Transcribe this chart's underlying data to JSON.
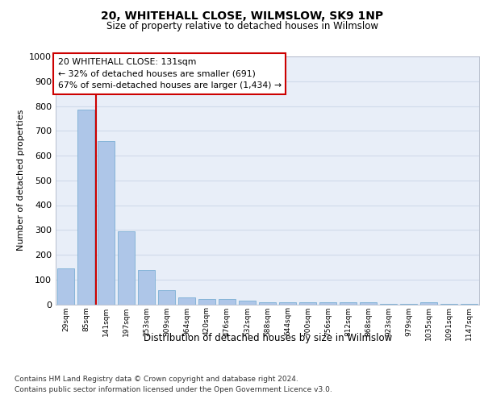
{
  "title": "20, WHITEHALL CLOSE, WILMSLOW, SK9 1NP",
  "subtitle": "Size of property relative to detached houses in Wilmslow",
  "xlabel": "Distribution of detached houses by size in Wilmslow",
  "ylabel": "Number of detached properties",
  "bar_color": "#aec6e8",
  "bar_edge_color": "#7aafd4",
  "categories": [
    "29sqm",
    "85sqm",
    "141sqm",
    "197sqm",
    "253sqm",
    "309sqm",
    "364sqm",
    "420sqm",
    "476sqm",
    "532sqm",
    "588sqm",
    "644sqm",
    "700sqm",
    "756sqm",
    "812sqm",
    "868sqm",
    "923sqm",
    "979sqm",
    "1035sqm",
    "1091sqm",
    "1147sqm"
  ],
  "values": [
    145,
    785,
    660,
    295,
    138,
    57,
    28,
    20,
    20,
    15,
    8,
    8,
    8,
    8,
    8,
    8,
    2,
    2,
    8,
    2,
    2
  ],
  "vline_x": 1.5,
  "annotation_title": "20 WHITEHALL CLOSE: 131sqm",
  "annotation_line1": "← 32% of detached houses are smaller (691)",
  "annotation_line2": "67% of semi-detached houses are larger (1,434) →",
  "annotation_box_color": "#ffffff",
  "annotation_box_edge_color": "#cc0000",
  "vline_color": "#cc0000",
  "footer1": "Contains HM Land Registry data © Crown copyright and database right 2024.",
  "footer2": "Contains public sector information licensed under the Open Government Licence v3.0.",
  "ylim": [
    0,
    1000
  ],
  "grid_color": "#d0daea",
  "plot_bg": "#e8eef8"
}
